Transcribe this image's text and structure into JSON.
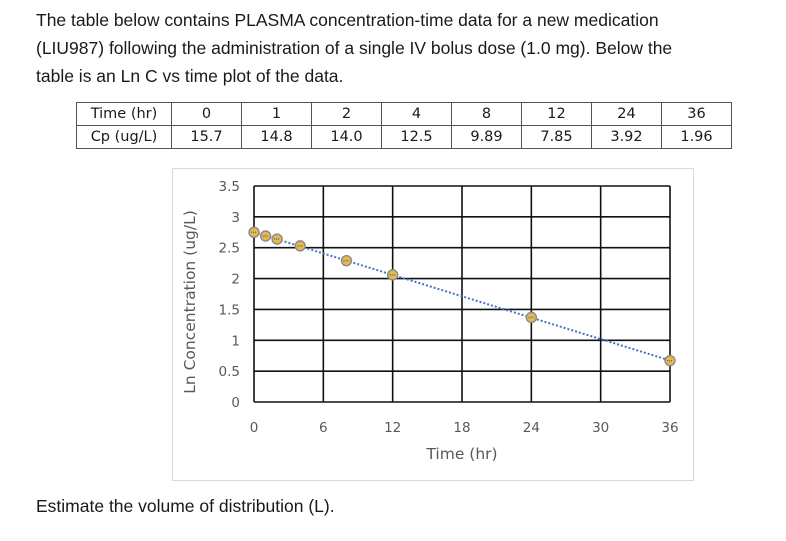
{
  "intro": {
    "line1": "The table below contains PLASMA concentration-time data for a new medication",
    "line2": "(LIU987) following the administration of a single IV bolus dose (1.0 mg).  Below the",
    "line3": "table is an Ln C vs time plot of the data."
  },
  "table": {
    "row_headers": [
      "Time (hr)",
      "Cp (ug/L)"
    ],
    "time": [
      "0",
      "1",
      "2",
      "4",
      "8",
      "12",
      "24",
      "36"
    ],
    "cp": [
      "15.7",
      "14.8",
      "14.0",
      "12.5",
      "9.89",
      "7.85",
      "3.92",
      "1.96"
    ]
  },
  "chart_data": {
    "type": "scatter",
    "title": "",
    "xlabel": "Time (hr)",
    "ylabel": "Ln Concentration (ug/L)",
    "xlim": [
      0,
      36
    ],
    "ylim": [
      0,
      3.5
    ],
    "xticks": [
      "0",
      "6",
      "12",
      "18",
      "24",
      "30",
      "36"
    ],
    "yticks": [
      "0",
      "0.5",
      "1",
      "1.5",
      "2",
      "2.5",
      "3",
      "3.5"
    ],
    "grid": true,
    "trendline": "linear, dotted",
    "marker_color": "#e8b84b",
    "marker_edge": "#8a8a8a",
    "trendline_color": "#4472c4",
    "x": [
      0,
      1,
      2,
      4,
      8,
      12,
      24,
      36
    ],
    "y": [
      2.75,
      2.69,
      2.64,
      2.53,
      2.29,
      2.06,
      1.37,
      0.67
    ]
  },
  "question": "Estimate the volume of distribution (L)."
}
